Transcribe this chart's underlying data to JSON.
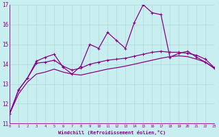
{
  "xlabel": "Windchill (Refroidissement éolien,°C)",
  "bg_color": "#c8eef0",
  "grid_color": "#b0d8d8",
  "line_color": "#880088",
  "xlim": [
    0,
    23
  ],
  "ylim": [
    11,
    17
  ],
  "xticks": [
    0,
    1,
    2,
    3,
    4,
    5,
    6,
    7,
    8,
    9,
    10,
    11,
    12,
    13,
    14,
    15,
    16,
    17,
    18,
    19,
    20,
    21,
    22,
    23
  ],
  "yticks": [
    11,
    12,
    13,
    14,
    15,
    16,
    17
  ],
  "series1_x": [
    0,
    1,
    2,
    3,
    4,
    5,
    6,
    7,
    8,
    9,
    10,
    11,
    12,
    13,
    14,
    15,
    16,
    17,
    18,
    19,
    20,
    21,
    22,
    23
  ],
  "series1_y": [
    11.5,
    12.7,
    13.3,
    14.15,
    14.35,
    14.5,
    13.85,
    13.5,
    13.9,
    15.0,
    14.8,
    15.6,
    15.2,
    14.8,
    16.1,
    17.0,
    16.6,
    16.5,
    14.35,
    14.55,
    14.65,
    14.35,
    14.1,
    13.8
  ],
  "series2_x": [
    0,
    1,
    2,
    3,
    4,
    5,
    6,
    7,
    8,
    9,
    10,
    11,
    12,
    13,
    14,
    15,
    16,
    17,
    18,
    19,
    20,
    21,
    22,
    23
  ],
  "series2_y": [
    11.5,
    12.7,
    13.3,
    14.05,
    14.1,
    14.2,
    13.9,
    13.7,
    13.8,
    14.0,
    14.1,
    14.2,
    14.25,
    14.3,
    14.4,
    14.5,
    14.6,
    14.65,
    14.6,
    14.6,
    14.55,
    14.45,
    14.25,
    13.82
  ],
  "series3_x": [
    0,
    1,
    2,
    3,
    4,
    5,
    6,
    7,
    8,
    9,
    10,
    11,
    12,
    13,
    14,
    15,
    16,
    17,
    18,
    19,
    20,
    21,
    22,
    23
  ],
  "series3_y": [
    11.5,
    12.5,
    13.1,
    13.5,
    13.6,
    13.75,
    13.6,
    13.5,
    13.45,
    13.55,
    13.65,
    13.75,
    13.82,
    13.9,
    14.0,
    14.1,
    14.2,
    14.3,
    14.38,
    14.42,
    14.38,
    14.25,
    14.1,
    13.78
  ]
}
